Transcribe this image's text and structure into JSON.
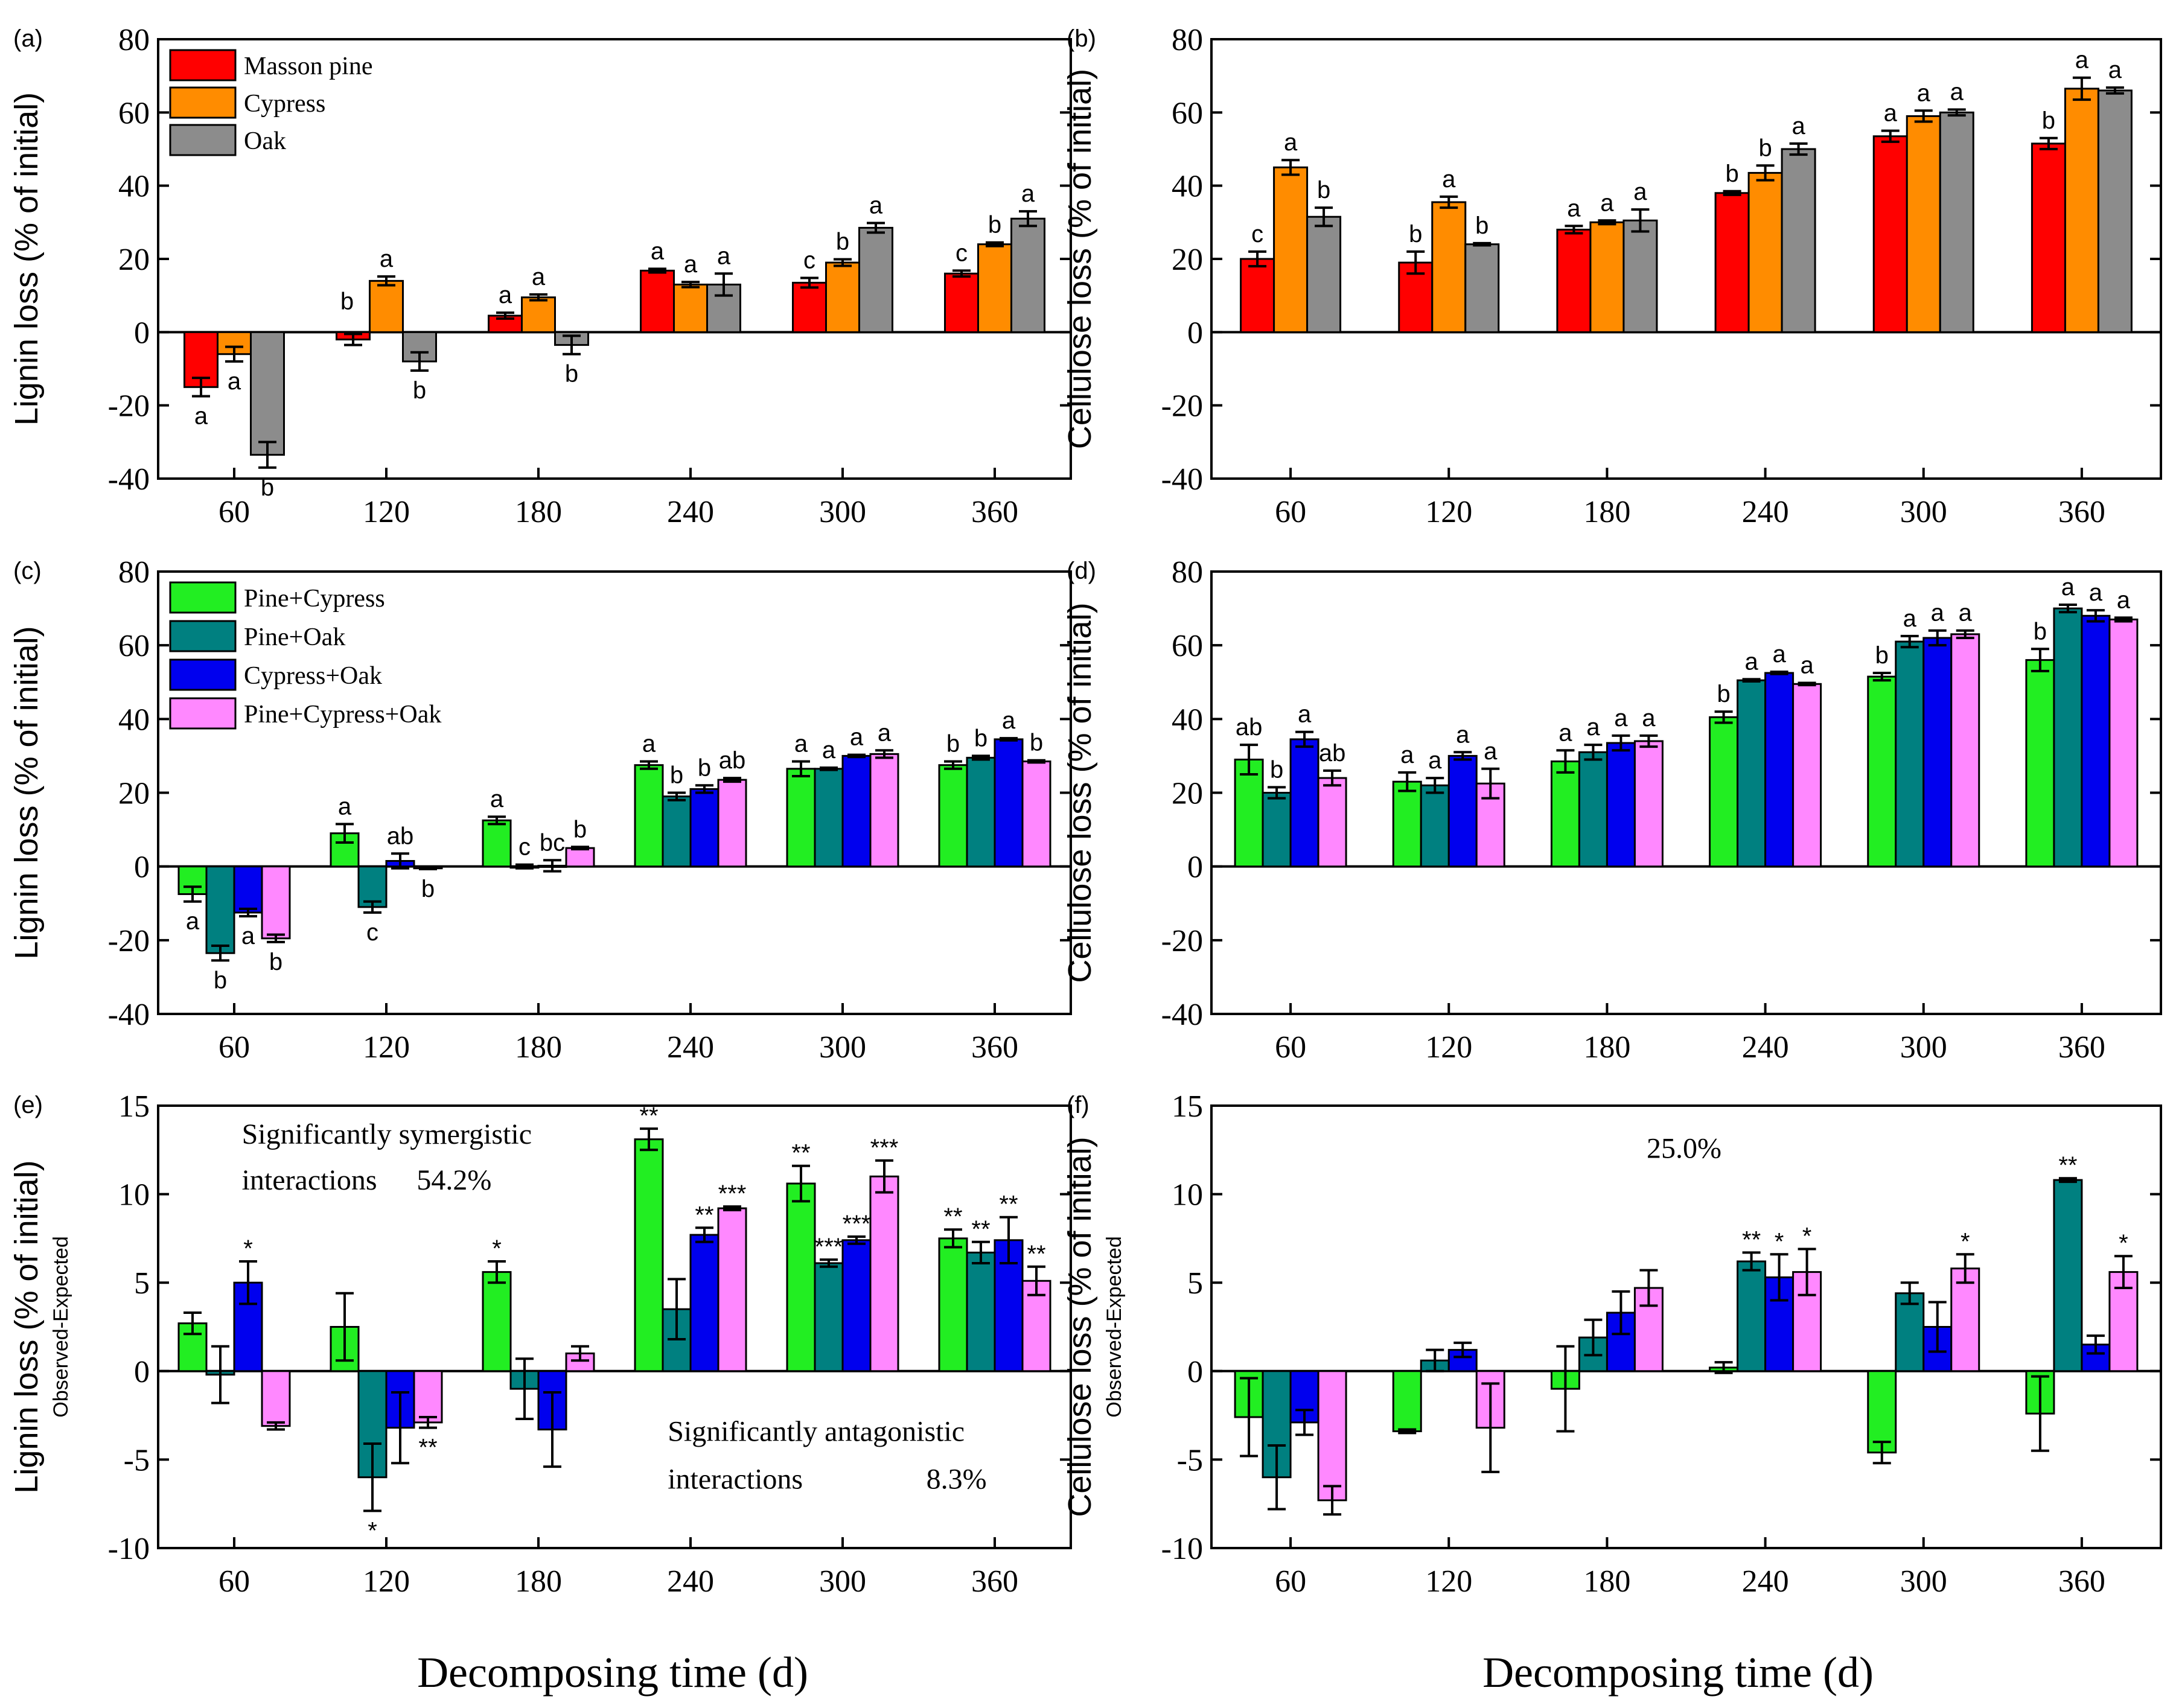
{
  "x_axis_label": "Decomposing time (d)",
  "chart_data": [
    {
      "panel": "(a)",
      "type": "bar",
      "ylabel": "Lignin loss (% of initial)",
      "ylabel2": "",
      "ylim": [
        -40,
        80
      ],
      "yticks": [
        -40,
        -20,
        0,
        20,
        40,
        60,
        80
      ],
      "categories": [
        "60",
        "120",
        "180",
        "240",
        "300",
        "360"
      ],
      "series": [
        {
          "name": "Masson pine",
          "color": "#ff0000",
          "values": [
            -15,
            -2,
            4.5,
            16.8,
            13.5,
            16
          ],
          "errors": [
            2.5,
            1.5,
            0.8,
            0.5,
            1.3,
            0.8
          ],
          "letters": [
            "a",
            "",
            "a",
            "a",
            "c",
            "c"
          ]
        },
        {
          "name": "Cypress",
          "color": "#ff8c00",
          "values": [
            -6,
            14,
            9.5,
            13,
            19,
            24
          ],
          "errors": [
            2,
            1.2,
            0.8,
            0.7,
            0.9,
            0.5
          ],
          "letters": [
            "a",
            "a",
            "a",
            "a",
            "b",
            "b"
          ]
        },
        {
          "name": "Oak",
          "color": "#8c8c8c",
          "values": [
            -33.5,
            -8,
            -3.5,
            13,
            28.5,
            31
          ],
          "errors": [
            3.5,
            2.5,
            2.5,
            3,
            1.3,
            2
          ],
          "letters": [
            "b",
            "b",
            "b",
            "a",
            "a",
            "a"
          ]
        }
      ],
      "extra_labels": [
        {
          "category": "120",
          "series": 0,
          "text": "b"
        }
      ],
      "legend": "top-left",
      "annotations": []
    },
    {
      "panel": "(b)",
      "type": "bar",
      "ylabel": "Cellulose loss (% of initial)",
      "ylabel2": "",
      "ylim": [
        -40,
        80
      ],
      "yticks": [
        -40,
        -20,
        0,
        20,
        40,
        60,
        80
      ],
      "categories": [
        "60",
        "120",
        "180",
        "240",
        "300",
        "360"
      ],
      "series": [
        {
          "name": "Masson pine",
          "color": "#ff0000",
          "values": [
            20,
            19,
            28,
            38,
            53.5,
            51.5
          ],
          "errors": [
            2,
            3,
            1,
            0.5,
            1.5,
            1.5
          ],
          "letters": [
            "c",
            "b",
            "a",
            "b",
            "a",
            "b"
          ]
        },
        {
          "name": "Cypress",
          "color": "#ff8c00",
          "values": [
            45,
            35.5,
            30,
            43.5,
            59,
            66.5
          ],
          "errors": [
            2,
            1.5,
            0.5,
            2,
            1.5,
            3
          ],
          "letters": [
            "a",
            "a",
            "a",
            "b",
            "a",
            "a"
          ]
        },
        {
          "name": "Oak",
          "color": "#8c8c8c",
          "values": [
            31.5,
            24,
            30.5,
            50,
            60,
            66
          ],
          "errors": [
            2.5,
            0.3,
            3,
            1.5,
            0.8,
            0.8
          ],
          "letters": [
            "b",
            "b",
            "a",
            "a",
            "a",
            "a"
          ]
        }
      ],
      "extra_labels": [],
      "legend": "none",
      "annotations": []
    },
    {
      "panel": "(c)",
      "type": "bar",
      "ylabel": "Lignin loss (% of initial)",
      "ylabel2": "",
      "ylim": [
        -40,
        80
      ],
      "yticks": [
        -40,
        -20,
        0,
        20,
        40,
        60,
        80
      ],
      "categories": [
        "60",
        "120",
        "180",
        "240",
        "300",
        "360"
      ],
      "series": [
        {
          "name": "Pine+Cypress",
          "color": "#22ee22",
          "values": [
            -7.5,
            9,
            12.5,
            27.5,
            26.5,
            27.5
          ],
          "errors": [
            2,
            2.5,
            1,
            1,
            2,
            1
          ],
          "letters": [
            "a",
            "a",
            "a",
            "a",
            "a",
            "b"
          ]
        },
        {
          "name": "Pine+Oak",
          "color": "#008080",
          "values": [
            -23.5,
            -11,
            0,
            19,
            26.5,
            29.5
          ],
          "errors": [
            2,
            1.5,
            0.5,
            1,
            0.3,
            0.5
          ],
          "letters": [
            "b",
            "c",
            "c",
            "b",
            "a",
            "b"
          ]
        },
        {
          "name": "Cypress+Oak",
          "color": "#0000ee",
          "values": [
            -12.5,
            1.5,
            0.2,
            21,
            30,
            34.5
          ],
          "errors": [
            1,
            2,
            1.5,
            1,
            0.3,
            0.3
          ],
          "letters": [
            "a",
            "ab",
            "bc",
            "b",
            "a",
            "a"
          ]
        },
        {
          "name": "Pine+Cypress+Oak",
          "color": "#ff88ff",
          "values": [
            -19.5,
            -0.5,
            5,
            23.5,
            30.5,
            28.5
          ],
          "errors": [
            1,
            0.2,
            0.3,
            0.5,
            1,
            0.3
          ],
          "letters": [
            "b",
            "b",
            "b",
            "ab",
            "a",
            "b"
          ]
        }
      ],
      "extra_labels": [],
      "legend": "top-left",
      "annotations": []
    },
    {
      "panel": "(d)",
      "type": "bar",
      "ylabel": "Cellulose loss (% of initial)",
      "ylabel2": "",
      "ylim": [
        -40,
        80
      ],
      "yticks": [
        -40,
        -20,
        0,
        20,
        40,
        60,
        80
      ],
      "categories": [
        "60",
        "120",
        "180",
        "240",
        "300",
        "360"
      ],
      "series": [
        {
          "name": "Pine+Cypress",
          "color": "#22ee22",
          "values": [
            29,
            23,
            28.5,
            40.5,
            51.5,
            56
          ],
          "errors": [
            4,
            2.5,
            3,
            1.5,
            1,
            3
          ],
          "letters": [
            "ab",
            "a",
            "a",
            "b",
            "b",
            "b"
          ]
        },
        {
          "name": "Pine+Oak",
          "color": "#008080",
          "values": [
            20,
            22,
            31,
            50.5,
            61,
            70
          ],
          "errors": [
            1.5,
            2,
            2,
            0.3,
            1.5,
            1
          ],
          "letters": [
            "b",
            "a",
            "a",
            "a",
            "a",
            "a"
          ]
        },
        {
          "name": "Cypress+Oak",
          "color": "#0000ee",
          "values": [
            34.5,
            30,
            33.5,
            52.5,
            62,
            68
          ],
          "errors": [
            2,
            1,
            2,
            0.3,
            2,
            1.5
          ],
          "letters": [
            "a",
            "a",
            "a",
            "a",
            "a",
            "a"
          ]
        },
        {
          "name": "Pine+Cypress+Oak",
          "color": "#ff88ff",
          "values": [
            24,
            22.5,
            34,
            49.5,
            63,
            67
          ],
          "errors": [
            2,
            4,
            1.5,
            0.3,
            1,
            0.5
          ],
          "letters": [
            "ab",
            "a",
            "a",
            "a",
            "a",
            "a"
          ]
        }
      ],
      "extra_labels": [],
      "legend": "none",
      "annotations": []
    },
    {
      "panel": "(e)",
      "type": "bar",
      "ylabel": "Lignin loss (% of initial)",
      "ylabel2": "Observed-Expected",
      "ylim": [
        -10,
        15
      ],
      "yticks": [
        -10,
        -5,
        0,
        5,
        10,
        15
      ],
      "categories": [
        "60",
        "120",
        "180",
        "240",
        "300",
        "360"
      ],
      "series": [
        {
          "name": "Pine+Cypress",
          "color": "#22ee22",
          "values": [
            2.7,
            2.5,
            5.6,
            13.1,
            10.6,
            7.5
          ],
          "errors": [
            0.6,
            1.9,
            0.6,
            0.6,
            1,
            0.5
          ],
          "letters": [
            "",
            "",
            "*",
            "**",
            "**",
            "**"
          ]
        },
        {
          "name": "Pine+Oak",
          "color": "#008080",
          "values": [
            -0.2,
            -6,
            -1,
            3.5,
            6.1,
            6.7
          ],
          "errors": [
            1.6,
            1.9,
            1.7,
            1.7,
            0.2,
            0.6
          ],
          "letters": [
            "",
            "*",
            "",
            "",
            "***",
            "**"
          ]
        },
        {
          "name": "Cypress+Oak",
          "color": "#0000ee",
          "values": [
            5,
            -3.2,
            -3.3,
            7.7,
            7.4,
            7.4
          ],
          "errors": [
            1.2,
            2,
            2.1,
            0.4,
            0.2,
            1.3
          ],
          "letters": [
            "*",
            "",
            "",
            "**",
            "***",
            "**"
          ]
        },
        {
          "name": "Pine+Cypress+Oak",
          "color": "#ff88ff",
          "values": [
            -3.1,
            -2.9,
            1,
            9.2,
            11,
            5.1
          ],
          "errors": [
            0.2,
            0.3,
            0.4,
            0.1,
            0.9,
            0.8
          ],
          "letters": [
            "",
            "**",
            "",
            "***",
            "***",
            "**"
          ]
        }
      ],
      "extra_labels": [],
      "legend": "none",
      "annotations": [
        {
          "text": "Significantly symergistic",
          "x": "0.55",
          "y": 13.4
        },
        {
          "text": "interactions",
          "x": "0.55",
          "y": 10.8
        },
        {
          "text": "54.2%",
          "x": "1.7",
          "y": 10.8
        },
        {
          "text": "Significantly antagonistic",
          "x": "3.35",
          "y": -3.4
        },
        {
          "text": "interactions",
          "x": "3.35",
          "y": -6.1
        },
        {
          "text": "8.3%",
          "x": "5.05",
          "y": -6.1
        }
      ]
    },
    {
      "panel": "(f)",
      "type": "bar",
      "ylabel": "Cellulose loss (% of initial)",
      "ylabel2": "Observed-Expected",
      "ylim": [
        -10,
        15
      ],
      "yticks": [
        -10,
        -5,
        0,
        5,
        10,
        15
      ],
      "categories": [
        "60",
        "120",
        "180",
        "240",
        "300",
        "360"
      ],
      "series": [
        {
          "name": "Pine+Cypress",
          "color": "#22ee22",
          "values": [
            -2.6,
            -3.4,
            -1,
            0.2,
            -4.6,
            -2.4
          ],
          "errors": [
            2.2,
            0.1,
            2.4,
            0.3,
            0.6,
            2.1
          ],
          "letters": [
            "",
            "",
            "",
            "",
            "",
            ""
          ]
        },
        {
          "name": "Pine+Oak",
          "color": "#008080",
          "values": [
            -6,
            0.6,
            1.9,
            6.2,
            4.4,
            10.8
          ],
          "errors": [
            1.8,
            0.6,
            1,
            0.5,
            0.6,
            0.1
          ],
          "letters": [
            "",
            "",
            "",
            "**",
            "",
            "**"
          ]
        },
        {
          "name": "Cypress+Oak",
          "color": "#0000ee",
          "values": [
            -2.9,
            1.2,
            3.3,
            5.3,
            2.5,
            1.5
          ],
          "errors": [
            0.7,
            0.4,
            1.2,
            1.3,
            1.4,
            0.5
          ],
          "letters": [
            "",
            "",
            "",
            "*",
            "",
            ""
          ]
        },
        {
          "name": "Pine+Cypress+Oak",
          "color": "#ff88ff",
          "values": [
            -7.3,
            -3.2,
            4.7,
            5.6,
            5.8,
            5.6
          ],
          "errors": [
            0.8,
            2.5,
            1,
            1.3,
            0.8,
            0.9
          ],
          "letters": [
            "",
            "",
            "",
            "*",
            "*",
            "*"
          ]
        }
      ],
      "extra_labels": [],
      "legend": "none",
      "annotations": [
        {
          "text": "25.0%",
          "x": "2.75",
          "y": 12.6
        }
      ]
    }
  ]
}
